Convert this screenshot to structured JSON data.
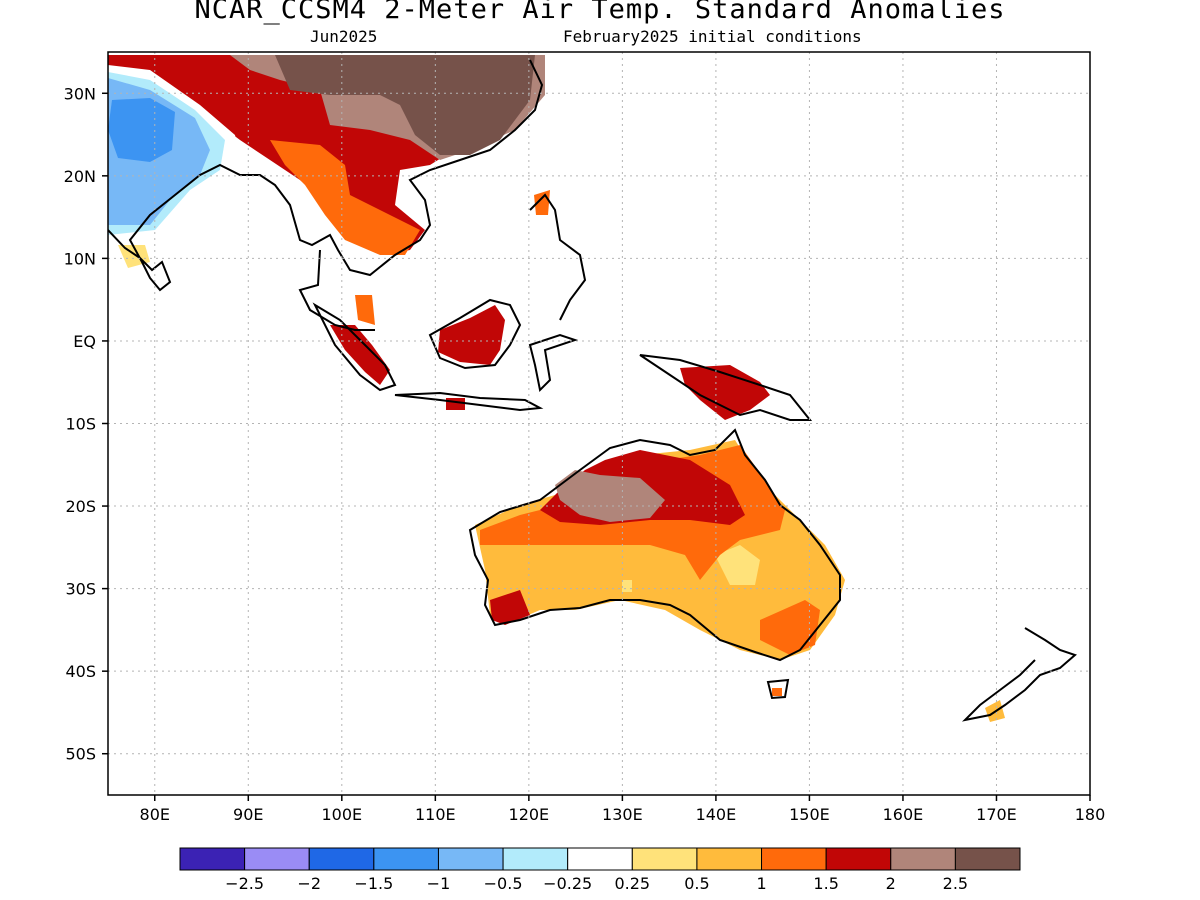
{
  "title": "NCAR_CCSM4 2-Meter Air Temp. Standard Anomalies",
  "subtitle_left": "Jun2025",
  "subtitle_right": "February2025 initial conditions",
  "map": {
    "lon_range": [
      75,
      180
    ],
    "lat_range": [
      -55,
      35
    ],
    "lon_ticks": [
      {
        "v": 80,
        "label": "80E"
      },
      {
        "v": 90,
        "label": "90E"
      },
      {
        "v": 100,
        "label": "100E"
      },
      {
        "v": 110,
        "label": "110E"
      },
      {
        "v": 120,
        "label": "120E"
      },
      {
        "v": 130,
        "label": "130E"
      },
      {
        "v": 140,
        "label": "140E"
      },
      {
        "v": 150,
        "label": "150E"
      },
      {
        "v": 160,
        "label": "160E"
      },
      {
        "v": 170,
        "label": "170E"
      },
      {
        "v": 180,
        "label": "180"
      }
    ],
    "lat_ticks": [
      {
        "v": 30,
        "label": "30N"
      },
      {
        "v": 20,
        "label": "20N"
      },
      {
        "v": 10,
        "label": "10N"
      },
      {
        "v": 0,
        "label": "EQ"
      },
      {
        "v": -10,
        "label": "10S"
      },
      {
        "v": -20,
        "label": "20S"
      },
      {
        "v": -30,
        "label": "30S"
      },
      {
        "v": -40,
        "label": "40S"
      },
      {
        "v": -50,
        "label": "50S"
      }
    ],
    "grid": true
  },
  "colorbar": {
    "colors": [
      "#3b22b4",
      "#9a8cf5",
      "#1f68e6",
      "#3c94f2",
      "#77b8f6",
      "#b2ebfb",
      "#ffffff",
      "#ffe27a",
      "#ffbb3c",
      "#ff6a0b",
      "#c10606",
      "#b0857a",
      "#76524a"
    ],
    "labels": [
      "-2.5",
      "-2",
      "-1.5",
      "-1",
      "-0.5",
      "-0.25",
      "0.25",
      "0.5",
      "1",
      "1.5",
      "2",
      "2.5"
    ]
  }
}
